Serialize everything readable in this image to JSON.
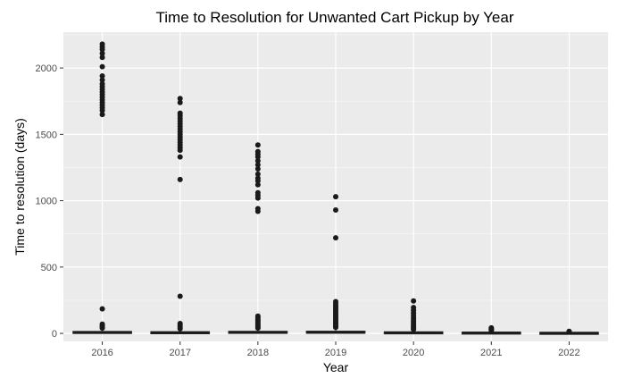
{
  "chart_data": {
    "type": "box",
    "title": "Time to Resolution for Unwanted Cart Pickup by Year",
    "xlabel": "Year",
    "ylabel": "Time to resolution (days)",
    "categories": [
      "2016",
      "2017",
      "2018",
      "2019",
      "2020",
      "2021",
      "2022"
    ],
    "ylim": [
      -60,
      2270
    ],
    "yticks": [
      0,
      500,
      1000,
      1500,
      2000
    ],
    "grid": true,
    "colors": {
      "panel": "#ebebeb",
      "grid_major": "#ffffff",
      "points": "#1a1a1a"
    },
    "boxes": [
      {
        "category": "2016",
        "q1": 2,
        "median": 6,
        "q3": 14,
        "whisker_low": 0,
        "whisker_high": 30
      },
      {
        "category": "2017",
        "q1": 2,
        "median": 5,
        "q3": 12,
        "whisker_low": 0,
        "whisker_high": 26
      },
      {
        "category": "2018",
        "q1": 3,
        "median": 7,
        "q3": 15,
        "whisker_low": 0,
        "whisker_high": 32
      },
      {
        "category": "2019",
        "q1": 3,
        "median": 7,
        "q3": 16,
        "whisker_low": 0,
        "whisker_high": 35
      },
      {
        "category": "2020",
        "q1": 2,
        "median": 5,
        "q3": 11,
        "whisker_low": 0,
        "whisker_high": 24
      },
      {
        "category": "2021",
        "q1": 2,
        "median": 4,
        "q3": 9,
        "whisker_low": 0,
        "whisker_high": 18
      },
      {
        "category": "2022",
        "q1": 1,
        "median": 3,
        "q3": 7,
        "whisker_low": 0,
        "whisker_high": 14
      }
    ],
    "outliers": [
      {
        "category": "2016",
        "values": [
          2180,
          2160,
          2140,
          2110,
          2080,
          2010,
          1940,
          1910,
          1880,
          1860,
          1840,
          1820,
          1800,
          1780,
          1760,
          1740,
          1720,
          1700,
          1680,
          1650,
          185,
          70,
          58,
          48,
          40
        ]
      },
      {
        "category": "2017",
        "values": [
          1770,
          1740,
          1660,
          1640,
          1620,
          1600,
          1580,
          1560,
          1540,
          1520,
          1500,
          1480,
          1460,
          1440,
          1420,
          1400,
          1380,
          1330,
          1160,
          280,
          75,
          60,
          45,
          35
        ]
      },
      {
        "category": "2018",
        "values": [
          1420,
          1370,
          1350,
          1330,
          1300,
          1270,
          1240,
          1200,
          1170,
          1150,
          1120,
          1060,
          1040,
          1020,
          940,
          920,
          130,
          118,
          105,
          95,
          85,
          75,
          65,
          55,
          45,
          40
        ]
      },
      {
        "category": "2019",
        "values": [
          1030,
          930,
          720,
          240,
          225,
          210,
          198,
          185,
          172,
          160,
          148,
          135,
          122,
          110,
          98,
          88,
          78,
          68,
          58,
          50,
          45
        ]
      },
      {
        "category": "2020",
        "values": [
          245,
          195,
          175,
          155,
          135,
          118,
          102,
          90,
          78,
          66,
          55,
          45,
          38,
          30
        ]
      },
      {
        "category": "2021",
        "values": [
          42,
          36,
          30,
          25,
          22
        ]
      },
      {
        "category": "2022",
        "values": [
          16,
          13
        ]
      }
    ]
  }
}
